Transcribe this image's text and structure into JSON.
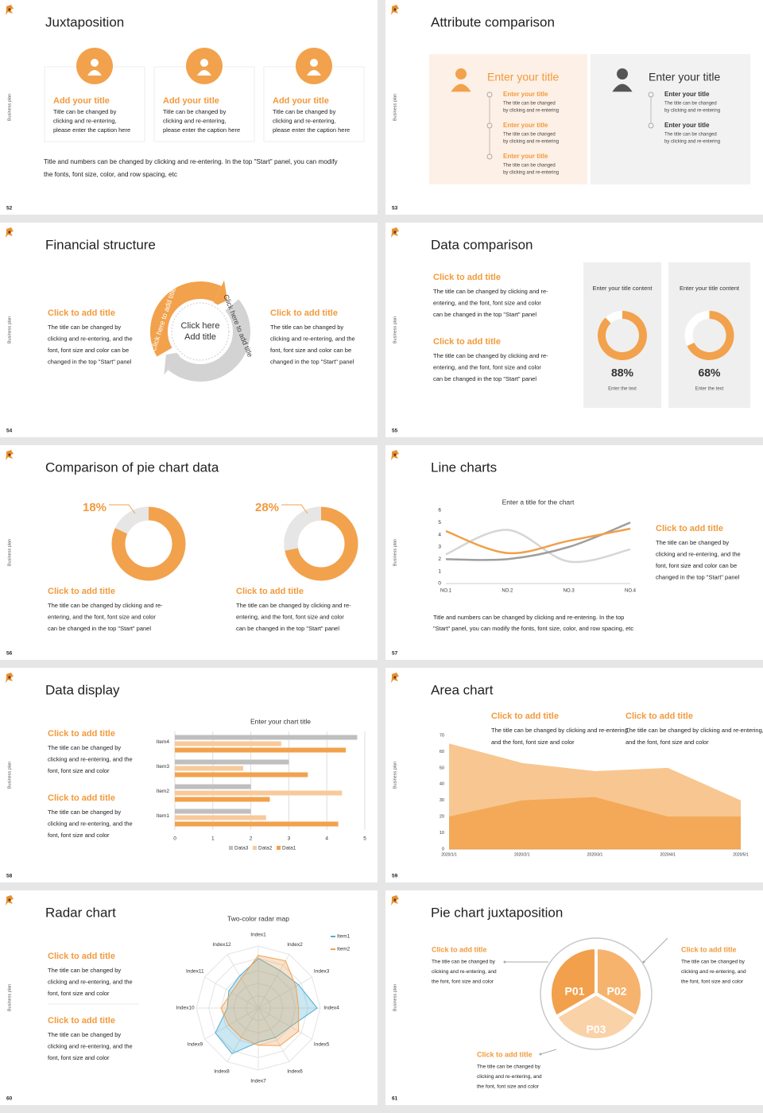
{
  "slides": [
    {
      "number": "52",
      "side": "Business plan",
      "title": "Juxtaposition",
      "layout": "cards",
      "cards": [
        {
          "title": "Add your title",
          "text": [
            "Title can be changed by",
            "clicking and re-entering,",
            "please enter the caption here"
          ]
        },
        {
          "title": "Add your title",
          "text": [
            "Title can be changed by",
            "clicking and re-entering,",
            "please enter the caption here"
          ]
        },
        {
          "title": "Add your title",
          "text": [
            "Title can be changed by",
            "clicking and re-entering,",
            "please enter the caption here"
          ]
        }
      ],
      "footer": [
        "Title and numbers can be changed by clicking and re-entering. In the top \"Start\" panel, you can modify",
        "the fonts, font size, color, and row spacing, etc"
      ]
    },
    {
      "number": "53",
      "side": "Business plan",
      "title": "Attribute comparison",
      "layout": "attributes",
      "panels": [
        {
          "title": "Enter your title",
          "items": [
            {
              "title": "Enter your title",
              "text": [
                "The title can be changed",
                "by clicking and re-entering"
              ]
            },
            {
              "title": "Enter your title",
              "text": [
                "The title can be changed",
                "by clicking and re-entering"
              ]
            },
            {
              "title": "Enter your title",
              "text": [
                "The title can be changed",
                "by clicking and re-entering"
              ]
            }
          ]
        },
        {
          "title": "Enter your title",
          "items": [
            {
              "title": "Enter your title",
              "text": [
                "The title can be changed",
                "by clicking and re-entering"
              ]
            },
            {
              "title": "Enter your title",
              "text": [
                "The title can be changed",
                "by clicking and re-entering"
              ]
            }
          ]
        }
      ]
    },
    {
      "number": "54",
      "side": "Business plan",
      "title": "Financial structure",
      "layout": "cycle",
      "left": {
        "title": "Click to add title",
        "text": [
          "The title can be changed by",
          "clicking and re-entering, and the",
          "font, font size and color can be",
          "changed in the top \"Start\" panel"
        ]
      },
      "right": {
        "title": "Click to add title",
        "text": [
          "The title can be changed by",
          "clicking and re-entering, and the",
          "font, font size and color can be",
          "changed in the top \"Start\" panel"
        ]
      },
      "center": [
        "Click here",
        "Add title"
      ],
      "arrow_labels": [
        "Click here to add title",
        "Click here to add title"
      ]
    },
    {
      "number": "55",
      "side": "Business plan",
      "title": "Data comparison",
      "layout": "donut-compare",
      "blocks": [
        {
          "title": "Click to add title",
          "text": [
            "The title can be changed by clicking and re-",
            "entering, and the font, font size and color",
            "can be changed in the top \"Start\" panel"
          ]
        },
        {
          "title": "Click to add title",
          "text": [
            "The title can be changed by clicking and re-",
            "entering, and the font, font size and color",
            "can be changed in the top \"Start\" panel"
          ]
        }
      ],
      "cards": [
        {
          "heading": "Enter your title content",
          "value": 88,
          "value_label": "88%",
          "caption": "Enter the text",
          "color": "#f2a24c"
        },
        {
          "heading": "Enter your title content",
          "value": 68,
          "value_label": "68%",
          "caption": "Enter the text",
          "color": "#f2a24c"
        }
      ]
    },
    {
      "number": "56",
      "side": "Business plan",
      "title": "Comparison of pie chart data",
      "layout": "pie-compare",
      "items": [
        {
          "value": 18,
          "value_label": "18%",
          "color": "#e6e6e6",
          "title": "Click to add title",
          "text": [
            "The title can be changed by clicking and re-",
            "entering, and the font, font size and color",
            "can be changed in the top \"Start\" panel"
          ]
        },
        {
          "value": 28,
          "value_label": "28%",
          "color": "#e6e6e6",
          "title": "Click to add title",
          "text": [
            "The title can be changed by clicking and re-",
            "entering, and the font, font size and color",
            "can be changed in the top \"Start\" panel"
          ]
        }
      ]
    },
    {
      "number": "57",
      "side": "Business plan",
      "title": "Line charts",
      "layout": "line",
      "chart": {
        "type": "line",
        "title": "Enter a title for the chart",
        "categories": [
          "NO.1",
          "NO.2",
          "NO.3",
          "NO.4"
        ],
        "ylim": [
          0,
          6
        ],
        "yticks": [
          0,
          1,
          2,
          3,
          4,
          5,
          6
        ],
        "series": [
          {
            "color": "#d6d6d6",
            "values": [
              2.4,
              4.4,
              1.8,
              2.8
            ]
          },
          {
            "color": "#9e9e9e",
            "values": [
              2,
              2,
              3,
              5
            ]
          },
          {
            "color": "#f0a04b",
            "values": [
              4.3,
              2.5,
              3.5,
              4.5
            ]
          }
        ]
      },
      "block": {
        "title": "Click to add title",
        "text": [
          "The title can be changed by",
          "clicking and re-entering, and the",
          "font, font size and color can be",
          "changed in the top \"Start\" panel"
        ]
      },
      "footer": [
        "Title and numbers can be changed by clicking and re-entering. In the top",
        "\"Start\" panel, you can modify the fonts, font size, color, and row spacing, etc"
      ]
    },
    {
      "number": "58",
      "side": "Business plan",
      "title": "Data display",
      "layout": "hbar",
      "blocks": [
        {
          "title": "Click to add title",
          "text": [
            "The title can be changed by",
            "clicking and re-entering, and the",
            "font, font size and color"
          ]
        },
        {
          "title": "Click to add title",
          "text": [
            "The title can be changed by",
            "clicking and re-entering, and the",
            "font, font size and color"
          ]
        }
      ],
      "chart": {
        "type": "bar",
        "title": "Enter your chart title",
        "categories": [
          "Item1",
          "Item2",
          "Item3",
          "Item4"
        ],
        "xlim": [
          0,
          5
        ],
        "xticks": [
          0,
          1,
          2,
          3,
          4,
          5
        ],
        "grid": true,
        "series": [
          {
            "name": "Data3",
            "color": "#bfbfbf",
            "values": [
              2,
              2,
              3,
              4.8
            ]
          },
          {
            "name": "Data2",
            "color": "#f8c99a",
            "values": [
              2.4,
              4.4,
              1.8,
              2.8
            ]
          },
          {
            "name": "Data1",
            "color": "#f2a24c",
            "values": [
              4.3,
              2.5,
              3.5,
              4.5
            ]
          }
        ]
      }
    },
    {
      "number": "59",
      "side": "Business plan",
      "title": "Area chart",
      "layout": "area",
      "blocks": [
        {
          "title": "Click to add title",
          "text": [
            "The title can be changed by clicking and re-entering,",
            "and the font, font size and color"
          ]
        },
        {
          "title": "Click to add title",
          "text": [
            "The title can be changed by clicking and re-entering,",
            "and the font, font size and color"
          ]
        }
      ],
      "chart": {
        "type": "area",
        "x": [
          "2020/1/1",
          "2020/2/1",
          "2020/3/1",
          "2020/4/1",
          "2020/5/1"
        ],
        "ylim": [
          0,
          70
        ],
        "yticks": [
          0,
          10,
          20,
          30,
          40,
          50,
          60,
          70
        ],
        "series": [
          {
            "color": "#f8c690",
            "values": [
              65,
              53,
              48,
              50,
              30
            ]
          },
          {
            "color": "#f3a957",
            "values": [
              20,
              30,
              32,
              20,
              20
            ]
          }
        ]
      }
    },
    {
      "number": "60",
      "side": "Business plan",
      "title": "Radar chart",
      "layout": "radar",
      "blocks": [
        {
          "title": "Click to add title",
          "text": [
            "The title can be changed by",
            "clicking and re-entering, and the",
            "font, font size and color"
          ]
        },
        {
          "title": "Click to add title",
          "text": [
            "The title can be changed by",
            "clicking and re-entering, and the",
            "font, font size and color"
          ]
        }
      ],
      "chart": {
        "type": "radar",
        "title": "Two-color radar map",
        "categories": [
          "Index1",
          "Index2",
          "Index3",
          "Index4",
          "Index5",
          "Index6",
          "Index7",
          "Index8",
          "Index9",
          "Index10",
          "Index11",
          "Index12"
        ],
        "rlim": [
          0,
          100
        ],
        "series": [
          {
            "name": "Item1",
            "color": "#4eaed3",
            "values": [
              80,
              70,
              75,
              95,
              60,
              55,
              55,
              85,
              80,
              50,
              55,
              60
            ]
          },
          {
            "name": "Item2",
            "color": "#f0a050",
            "values": [
              85,
              88,
              70,
              65,
              75,
              70,
              60,
              55,
              55,
              60,
              50,
              55
            ]
          }
        ]
      }
    },
    {
      "number": "61",
      "side": "Business plan",
      "title": "Pie chart juxtaposition",
      "layout": "pie-three",
      "segments": [
        "P01",
        "P02",
        "P03"
      ],
      "blocks": [
        {
          "title": "Click to add title",
          "text": [
            "The title can be changed by",
            "clicking and re-entering, and",
            "the font, font size and color"
          ]
        },
        {
          "title": "Click to add title",
          "text": [
            "The title can be changed by",
            "clicking and re-entering, and",
            "the font, font size and color"
          ]
        },
        {
          "title": "Click to add title",
          "text": [
            "The title can be changed by",
            "clicking and re-entering, and",
            "the font, font size and color"
          ]
        }
      ]
    }
  ]
}
